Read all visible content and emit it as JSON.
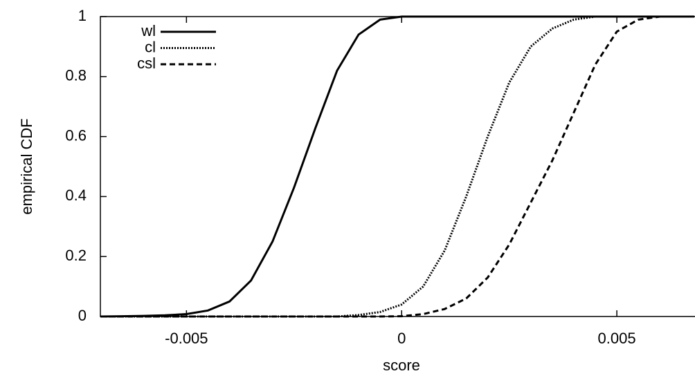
{
  "chart_data": {
    "type": "line",
    "xlabel": "score",
    "ylabel": "empirical CDF",
    "x": [
      -0.007,
      -0.0065,
      -0.006,
      -0.0055,
      -0.005,
      -0.0045,
      -0.004,
      -0.0035,
      -0.003,
      -0.0025,
      -0.002,
      -0.0015,
      -0.001,
      -0.0005,
      0,
      0.0005,
      0.001,
      0.0015,
      0.002,
      0.0025,
      0.003,
      0.0035,
      0.004,
      0.0045,
      0.005,
      0.0055,
      0.006,
      0.0065,
      0.0068
    ],
    "series": [
      {
        "name": "wl",
        "color": "#000000",
        "style": "solid",
        "values": [
          0,
          0.001,
          0.002,
          0.004,
          0.008,
          0.02,
          0.05,
          0.12,
          0.25,
          0.43,
          0.63,
          0.82,
          0.94,
          0.99,
          1,
          1,
          1,
          1,
          1,
          1,
          1,
          1,
          1,
          1,
          1,
          1,
          1,
          1,
          1
        ]
      },
      {
        "name": "cl",
        "color": "#000000",
        "style": "dotted",
        "values": [
          0,
          0,
          0,
          0,
          0,
          0,
          0,
          0,
          0,
          0,
          0,
          0,
          0.005,
          0.015,
          0.04,
          0.1,
          0.22,
          0.4,
          0.6,
          0.78,
          0.9,
          0.96,
          0.99,
          1,
          1,
          1,
          1,
          1,
          1
        ]
      },
      {
        "name": "csl",
        "color": "#000000",
        "style": "dashed",
        "values": [
          0,
          0,
          0,
          0,
          0,
          0,
          0,
          0,
          0,
          0,
          0,
          0,
          0,
          0,
          0.001,
          0.008,
          0.025,
          0.06,
          0.13,
          0.24,
          0.38,
          0.52,
          0.68,
          0.84,
          0.95,
          0.99,
          1,
          1,
          1
        ]
      }
    ],
    "xlim": [
      -0.007,
      0.0068
    ],
    "xticks": [
      -0.005,
      0,
      0.005
    ],
    "ylim": [
      0,
      1
    ],
    "yticks": [
      0,
      0.2,
      0.4,
      0.6,
      0.8,
      1
    ],
    "legend": "top-left"
  }
}
